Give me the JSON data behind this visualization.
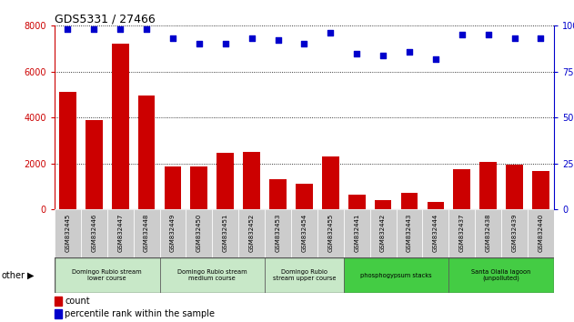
{
  "title": "GDS5331 / 27466",
  "samples": [
    "GSM832445",
    "GSM832446",
    "GSM832447",
    "GSM832448",
    "GSM832449",
    "GSM832450",
    "GSM832451",
    "GSM832452",
    "GSM832453",
    "GSM832454",
    "GSM832455",
    "GSM832441",
    "GSM832442",
    "GSM832443",
    "GSM832444",
    "GSM832437",
    "GSM832438",
    "GSM832439",
    "GSM832440"
  ],
  "counts": [
    5100,
    3900,
    7200,
    4950,
    1850,
    1850,
    2450,
    2500,
    1300,
    1100,
    2300,
    650,
    420,
    700,
    320,
    1750,
    2050,
    1950,
    1650
  ],
  "percentiles": [
    98,
    98,
    98,
    98,
    93,
    90,
    90,
    93,
    92,
    90,
    96,
    85,
    84,
    86,
    82,
    95,
    95,
    93,
    93
  ],
  "bar_color": "#cc0000",
  "dot_color": "#0000cc",
  "ylim_left": [
    0,
    8000
  ],
  "ylim_right": [
    0,
    100
  ],
  "yticks_left": [
    0,
    2000,
    4000,
    6000,
    8000
  ],
  "yticks_right": [
    0,
    25,
    50,
    75,
    100
  ],
  "group_data": [
    {
      "label": "Domingo Rubio stream\nlower course",
      "start": 0,
      "end": 3,
      "color": "#c8e8c8"
    },
    {
      "label": "Domingo Rubio stream\nmedium course",
      "start": 4,
      "end": 7,
      "color": "#c8e8c8"
    },
    {
      "label": "Domingo Rubio\nstream upper course",
      "start": 8,
      "end": 10,
      "color": "#c8e8c8"
    },
    {
      "label": "phosphogypsum stacks",
      "start": 11,
      "end": 14,
      "color": "#44cc44"
    },
    {
      "label": "Santa Olalla lagoon\n(unpolluted)",
      "start": 15,
      "end": 18,
      "color": "#44cc44"
    }
  ],
  "legend_count_label": "count",
  "legend_pct_label": "percentile rank within the sample",
  "other_label": "other",
  "tick_bg_color": "#cccccc"
}
